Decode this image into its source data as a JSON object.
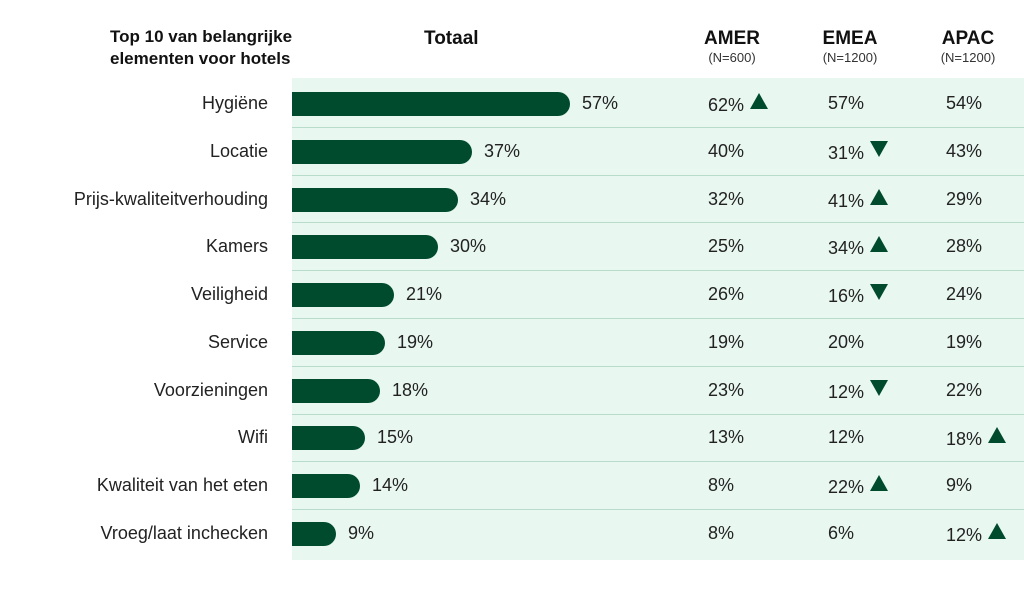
{
  "chart_data": {
    "type": "bar",
    "title": "Top 10 van belangrijke elementen voor hotels",
    "total_label": "Totaal",
    "categories": [
      "Hygiëne",
      "Locatie",
      "Prijs-kwaliteitverhouding",
      "Kamers",
      "Veiligheid",
      "Service",
      "Voorzieningen",
      "Wifi",
      "Kwaliteit van het eten",
      "Vroeg/laat inchecken"
    ],
    "values": [
      57,
      37,
      34,
      30,
      21,
      19,
      18,
      15,
      14,
      9
    ],
    "value_labels": [
      "57%",
      "37%",
      "34%",
      "30%",
      "21%",
      "19%",
      "18%",
      "15%",
      "14%",
      "9%"
    ],
    "regions": [
      {
        "name": "AMER",
        "n": "(N=600)",
        "values": [
          "62%",
          "40%",
          "32%",
          "25%",
          "26%",
          "19%",
          "23%",
          "13%",
          "8%",
          "8%"
        ],
        "trend": [
          "up",
          "",
          "",
          "",
          "",
          "",
          "",
          "",
          "",
          ""
        ]
      },
      {
        "name": "EMEA",
        "n": "(N=1200)",
        "values": [
          "57%",
          "31%",
          "41%",
          "34%",
          "16%",
          "20%",
          "12%",
          "12%",
          "22%",
          "6%"
        ],
        "trend": [
          "",
          "down",
          "up",
          "up",
          "down",
          "",
          "down",
          "",
          "up",
          ""
        ]
      },
      {
        "name": "APAC",
        "n": "(N=1200)",
        "values": [
          "54%",
          "43%",
          "29%",
          "28%",
          "24%",
          "19%",
          "22%",
          "18%",
          "9%",
          "12%"
        ],
        "trend": [
          "",
          "",
          "",
          "",
          "",
          "",
          "",
          "up",
          "",
          "up"
        ]
      }
    ],
    "colors": {
      "bar": "#004b2e",
      "panel": "#e8f7f0",
      "arrow": "#004b2e"
    },
    "xlim": [
      0,
      100
    ]
  }
}
